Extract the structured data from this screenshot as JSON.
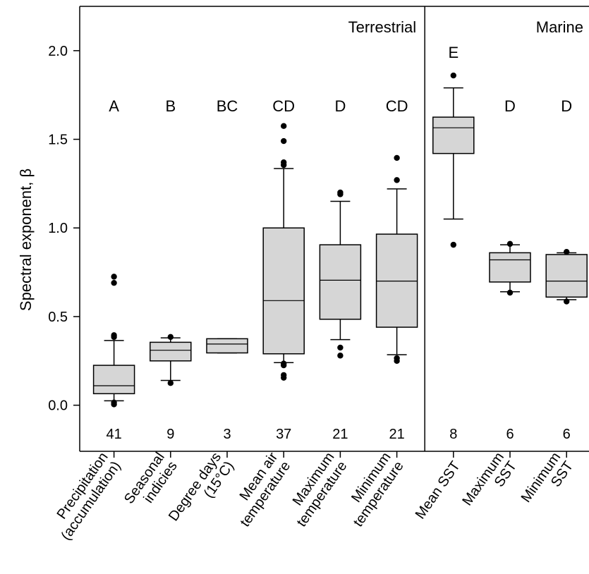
{
  "chart_data": {
    "type": "box",
    "ylabel": "Spectral exponent, β",
    "ylim": [
      -0.26,
      2.25
    ],
    "yticks": [
      "0.0",
      "0.5",
      "1.0",
      "1.5",
      "2.0"
    ],
    "ytick_values": [
      0,
      0.5,
      1.0,
      1.5,
      2.0
    ],
    "grid": false,
    "panels": [
      {
        "label": "Terrestrial"
      },
      {
        "label": "Marine"
      }
    ],
    "categories": [
      {
        "label_lines": [
          "Precipitation",
          "(accumulation)"
        ],
        "panel": "Terrestrial",
        "group": "A",
        "n": "41",
        "whisker_low": 0.025,
        "q1": 0.065,
        "median": 0.11,
        "q3": 0.225,
        "whisker_high": 0.365,
        "outliers": [
          0.005,
          0.015,
          0.385,
          0.395,
          0.69,
          0.725
        ]
      },
      {
        "label_lines": [
          "Seasonal",
          "indicies"
        ],
        "panel": "Terrestrial",
        "group": "B",
        "n": "9",
        "whisker_low": 0.14,
        "q1": 0.25,
        "median": 0.31,
        "q3": 0.355,
        "whisker_high": 0.38,
        "outliers": [
          0.125,
          0.385
        ]
      },
      {
        "label_lines": [
          "Degree days",
          "(15°C)"
        ],
        "panel": "Terrestrial",
        "group": "BC",
        "n": "3",
        "whisker_low": 0.295,
        "q1": 0.295,
        "median": 0.345,
        "q3": 0.375,
        "whisker_high": 0.375,
        "outliers": []
      },
      {
        "label_lines": [
          "Mean air",
          "temperature"
        ],
        "panel": "Terrestrial",
        "group": "CD",
        "n": "37",
        "whisker_low": 0.24,
        "q1": 0.29,
        "median": 0.59,
        "q3": 1.0,
        "whisker_high": 1.335,
        "outliers": [
          0.155,
          0.17,
          0.225,
          0.235,
          1.355,
          1.37,
          1.49,
          1.575
        ]
      },
      {
        "label_lines": [
          "Maximum",
          "temperature"
        ],
        "panel": "Terrestrial",
        "group": "D",
        "n": "21",
        "whisker_low": 0.37,
        "q1": 0.485,
        "median": 0.705,
        "q3": 0.905,
        "whisker_high": 1.15,
        "outliers": [
          0.28,
          0.325,
          1.19,
          1.2
        ]
      },
      {
        "label_lines": [
          "Minimum",
          "temperature"
        ],
        "panel": "Terrestrial",
        "group": "CD",
        "n": "21",
        "whisker_low": 0.285,
        "q1": 0.44,
        "median": 0.7,
        "q3": 0.965,
        "whisker_high": 1.22,
        "outliers": [
          0.25,
          0.265,
          1.27,
          1.395
        ]
      },
      {
        "label_lines": [
          "Mean SST"
        ],
        "panel": "Marine",
        "group": "E",
        "n": "8",
        "whisker_low": 1.05,
        "q1": 1.42,
        "median": 1.565,
        "q3": 1.625,
        "whisker_high": 1.79,
        "outliers": [
          0.905,
          1.86
        ]
      },
      {
        "label_lines": [
          "Maximum",
          "SST"
        ],
        "panel": "Marine",
        "group": "D",
        "n": "6",
        "whisker_low": 0.64,
        "q1": 0.695,
        "median": 0.82,
        "q3": 0.86,
        "whisker_high": 0.905,
        "outliers": [
          0.635,
          0.91
        ]
      },
      {
        "label_lines": [
          "Minimum",
          "SST"
        ],
        "panel": "Marine",
        "group": "D",
        "n": "6",
        "whisker_low": 0.595,
        "q1": 0.61,
        "median": 0.7,
        "q3": 0.85,
        "whisker_high": 0.86,
        "outliers": [
          0.585,
          0.865
        ]
      }
    ],
    "colors": {
      "box_fill": "#d6d6d6",
      "stroke": "#000000"
    }
  }
}
